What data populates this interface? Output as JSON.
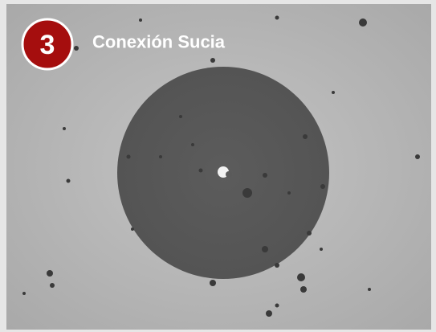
{
  "badge": {
    "number": "3"
  },
  "caption": "Conexión Sucia"
}
